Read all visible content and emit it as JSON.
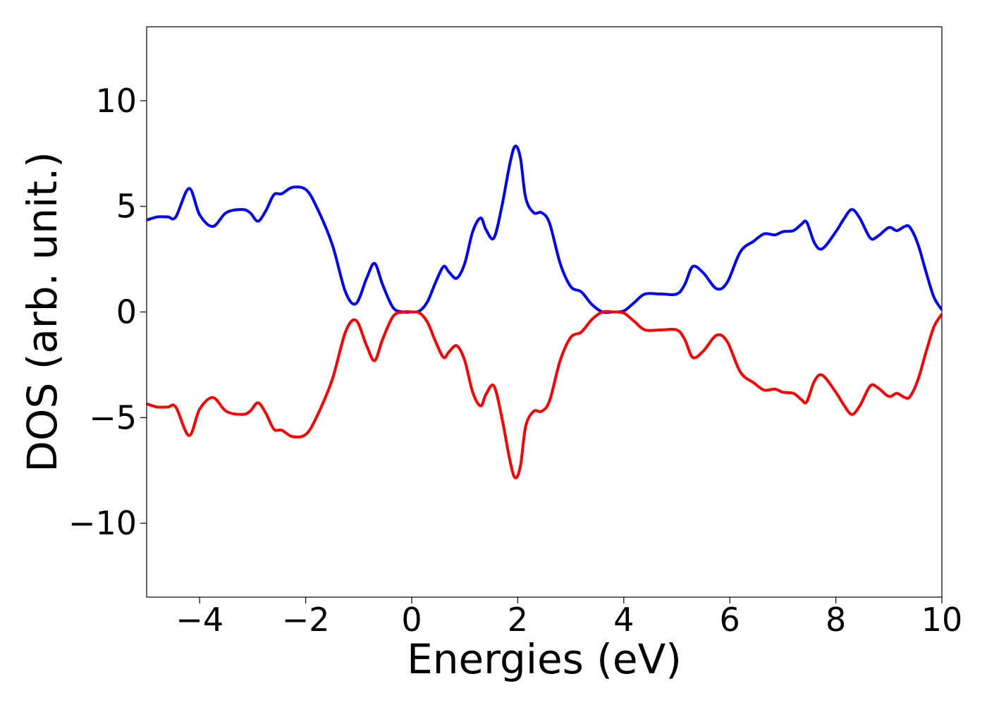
{
  "chart_data": {
    "type": "line",
    "title": "",
    "xlabel": "Energies (eV)",
    "ylabel": "DOS (arb. unit.)",
    "xlim": [
      -5,
      10
    ],
    "ylim": [
      -13.5,
      13.5
    ],
    "xticks": [
      -4,
      -2,
      0,
      2,
      4,
      6,
      8,
      10
    ],
    "yticks": [
      -10,
      -5,
      0,
      5,
      10
    ],
    "xtick_labels": [
      "−4",
      "−2",
      "0",
      "2",
      "4",
      "6",
      "8",
      "10"
    ],
    "ytick_labels": [
      "−10",
      "−5",
      "0",
      "5",
      "10"
    ],
    "grid": false,
    "legend": "none",
    "series": [
      {
        "color": "#0000ff",
        "x": [
          -5.0,
          -4.8,
          -4.6,
          -4.45,
          -4.2,
          -4.0,
          -3.75,
          -3.5,
          -3.2,
          -3.05,
          -2.9,
          -2.75,
          -2.6,
          -2.45,
          -2.25,
          -2.0,
          -1.8,
          -1.5,
          -1.25,
          -1.05,
          -0.85,
          -0.7,
          -0.55,
          -0.35,
          -0.15,
          0.0,
          0.15,
          0.3,
          0.45,
          0.6,
          0.7,
          0.85,
          1.0,
          1.15,
          1.3,
          1.4,
          1.55,
          1.7,
          1.85,
          1.95,
          2.05,
          2.15,
          2.3,
          2.45,
          2.6,
          2.8,
          3.0,
          3.2,
          3.4,
          3.6,
          3.8,
          4.0,
          4.2,
          4.4,
          4.7,
          5.0,
          5.15,
          5.3,
          5.5,
          5.75,
          5.95,
          6.2,
          6.45,
          6.65,
          6.85,
          7.0,
          7.2,
          7.35,
          7.45,
          7.6,
          7.75,
          8.0,
          8.15,
          8.3,
          8.45,
          8.65,
          8.8,
          9.0,
          9.15,
          9.3,
          9.4,
          9.55,
          9.7,
          9.85,
          10.0
        ],
        "y": [
          4.35,
          4.5,
          4.5,
          4.5,
          5.85,
          4.6,
          4.05,
          4.7,
          4.85,
          4.7,
          4.3,
          4.8,
          5.55,
          5.6,
          5.9,
          5.8,
          5.0,
          3.2,
          0.95,
          0.4,
          1.6,
          2.3,
          1.3,
          0.2,
          0.0,
          0.0,
          0.05,
          0.5,
          1.4,
          2.15,
          1.9,
          1.6,
          2.3,
          3.8,
          4.45,
          3.9,
          3.5,
          5.0,
          7.0,
          7.85,
          7.3,
          5.4,
          4.7,
          4.7,
          4.2,
          2.3,
          1.2,
          0.95,
          0.35,
          0.0,
          0.0,
          0.05,
          0.45,
          0.85,
          0.85,
          0.85,
          1.3,
          2.15,
          1.85,
          1.1,
          1.4,
          2.85,
          3.35,
          3.7,
          3.65,
          3.8,
          3.85,
          4.15,
          4.25,
          3.25,
          3.0,
          3.8,
          4.4,
          4.85,
          4.45,
          3.5,
          3.6,
          4.0,
          3.85,
          4.05,
          4.0,
          3.2,
          1.9,
          0.7,
          0.1
        ]
      },
      {
        "color": "#ff0000",
        "x": [
          -5.0,
          -4.8,
          -4.6,
          -4.45,
          -4.2,
          -4.0,
          -3.75,
          -3.5,
          -3.2,
          -3.05,
          -2.9,
          -2.75,
          -2.6,
          -2.45,
          -2.25,
          -2.0,
          -1.8,
          -1.5,
          -1.25,
          -1.05,
          -0.85,
          -0.7,
          -0.55,
          -0.35,
          -0.15,
          0.0,
          0.15,
          0.3,
          0.45,
          0.6,
          0.7,
          0.85,
          1.0,
          1.15,
          1.3,
          1.4,
          1.55,
          1.7,
          1.85,
          1.95,
          2.05,
          2.15,
          2.3,
          2.45,
          2.6,
          2.8,
          3.0,
          3.2,
          3.4,
          3.6,
          3.8,
          4.0,
          4.2,
          4.4,
          4.7,
          5.0,
          5.15,
          5.3,
          5.5,
          5.75,
          5.95,
          6.2,
          6.45,
          6.65,
          6.85,
          7.0,
          7.2,
          7.35,
          7.45,
          7.6,
          7.75,
          8.0,
          8.15,
          8.3,
          8.45,
          8.65,
          8.8,
          9.0,
          9.15,
          9.3,
          9.4,
          9.55,
          9.7,
          9.85,
          10.0
        ],
        "y": [
          -4.35,
          -4.5,
          -4.5,
          -4.5,
          -5.85,
          -4.6,
          -4.05,
          -4.7,
          -4.85,
          -4.7,
          -4.3,
          -4.8,
          -5.55,
          -5.6,
          -5.9,
          -5.8,
          -5.0,
          -3.2,
          -0.95,
          -0.4,
          -1.6,
          -2.3,
          -1.3,
          -0.2,
          0.0,
          0.0,
          -0.05,
          -0.5,
          -1.4,
          -2.15,
          -1.9,
          -1.6,
          -2.3,
          -3.8,
          -4.45,
          -3.9,
          -3.5,
          -5.0,
          -7.0,
          -7.85,
          -7.3,
          -5.4,
          -4.7,
          -4.7,
          -4.2,
          -2.3,
          -1.2,
          -0.95,
          -0.35,
          0.0,
          0.0,
          -0.05,
          -0.45,
          -0.85,
          -0.85,
          -0.85,
          -1.3,
          -2.15,
          -1.85,
          -1.1,
          -1.4,
          -2.85,
          -3.35,
          -3.7,
          -3.65,
          -3.8,
          -3.85,
          -4.15,
          -4.25,
          -3.25,
          -3.0,
          -3.8,
          -4.4,
          -4.85,
          -4.45,
          -3.5,
          -3.6,
          -4.0,
          -3.85,
          -4.05,
          -4.0,
          -3.2,
          -1.9,
          -0.7,
          -0.1
        ]
      }
    ]
  }
}
